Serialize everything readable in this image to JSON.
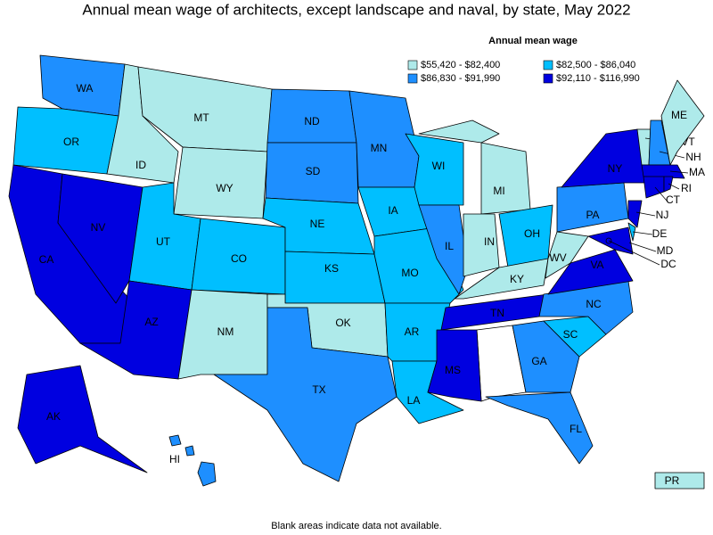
{
  "title": "Annual mean wage of architects, except landscape and naval, by state, May 2022",
  "legend": {
    "title": "Annual mean wage",
    "items": [
      {
        "label": "$55,420 - $82,400",
        "color": "#aeeaea"
      },
      {
        "label": "$82,500 - $86,040",
        "color": "#00bfff"
      },
      {
        "label": "$86,830 - $91,990",
        "color": "#1e8fff"
      },
      {
        "label": "$92,110 - $116,990",
        "color": "#0000e0"
      }
    ]
  },
  "states": [
    {
      "abbr": "WA",
      "color": "#1e8fff"
    },
    {
      "abbr": "OR",
      "color": "#00bfff"
    },
    {
      "abbr": "CA",
      "color": "#0000e0"
    },
    {
      "abbr": "NV",
      "color": "#0000e0"
    },
    {
      "abbr": "ID",
      "color": "#aeeaea"
    },
    {
      "abbr": "MT",
      "color": "#aeeaea"
    },
    {
      "abbr": "WY",
      "color": "#aeeaea"
    },
    {
      "abbr": "UT",
      "color": "#00bfff"
    },
    {
      "abbr": "AZ",
      "color": "#0000e0"
    },
    {
      "abbr": "CO",
      "color": "#00bfff"
    },
    {
      "abbr": "NM",
      "color": "#aeeaea"
    },
    {
      "abbr": "ND",
      "color": "#1e8fff"
    },
    {
      "abbr": "SD",
      "color": "#1e8fff"
    },
    {
      "abbr": "NE",
      "color": "#00bfff"
    },
    {
      "abbr": "KS",
      "color": "#00bfff"
    },
    {
      "abbr": "OK",
      "color": "#aeeaea"
    },
    {
      "abbr": "TX",
      "color": "#1e8fff"
    },
    {
      "abbr": "MN",
      "color": "#1e8fff"
    },
    {
      "abbr": "IA",
      "color": "#00bfff"
    },
    {
      "abbr": "MO",
      "color": "#00bfff"
    },
    {
      "abbr": "AR",
      "color": "#00bfff"
    },
    {
      "abbr": "LA",
      "color": "#00bfff"
    },
    {
      "abbr": "WI",
      "color": "#00bfff"
    },
    {
      "abbr": "IL",
      "color": "#1e8fff"
    },
    {
      "abbr": "MI",
      "color": "#aeeaea"
    },
    {
      "abbr": "IN",
      "color": "#aeeaea"
    },
    {
      "abbr": "OH",
      "color": "#00bfff"
    },
    {
      "abbr": "KY",
      "color": "#aeeaea"
    },
    {
      "abbr": "TN",
      "color": "#0000e0"
    },
    {
      "abbr": "MS",
      "color": "#0000e0"
    },
    {
      "abbr": "GA",
      "color": "#1e8fff"
    },
    {
      "abbr": "FL",
      "color": "#1e8fff"
    },
    {
      "abbr": "SC",
      "color": "#00bfff"
    },
    {
      "abbr": "NC",
      "color": "#1e8fff"
    },
    {
      "abbr": "VA",
      "color": "#0000e0"
    },
    {
      "abbr": "WV",
      "color": "#aeeaea"
    },
    {
      "abbr": "PA",
      "color": "#1e8fff"
    },
    {
      "abbr": "NY",
      "color": "#0000e0"
    },
    {
      "abbr": "NJ",
      "color": "#0000e0"
    },
    {
      "abbr": "DE",
      "color": "#00bfff"
    },
    {
      "abbr": "MD",
      "color": "#0000e0"
    },
    {
      "abbr": "DC",
      "color": "#0000e0"
    },
    {
      "abbr": "VT",
      "color": "#aeeaea"
    },
    {
      "abbr": "NH",
      "color": "#1e8fff"
    },
    {
      "abbr": "ME",
      "color": "#aeeaea"
    },
    {
      "abbr": "MA",
      "color": "#0000e0"
    },
    {
      "abbr": "CT",
      "color": "#0000e0"
    },
    {
      "abbr": "RI",
      "color": "#0000e0"
    },
    {
      "abbr": "AK",
      "color": "#0000e0"
    },
    {
      "abbr": "HI",
      "color": "#1e8fff"
    },
    {
      "abbr": "PR",
      "color": "#aeeaea"
    }
  ],
  "footnote": "Blank areas indicate data not available."
}
